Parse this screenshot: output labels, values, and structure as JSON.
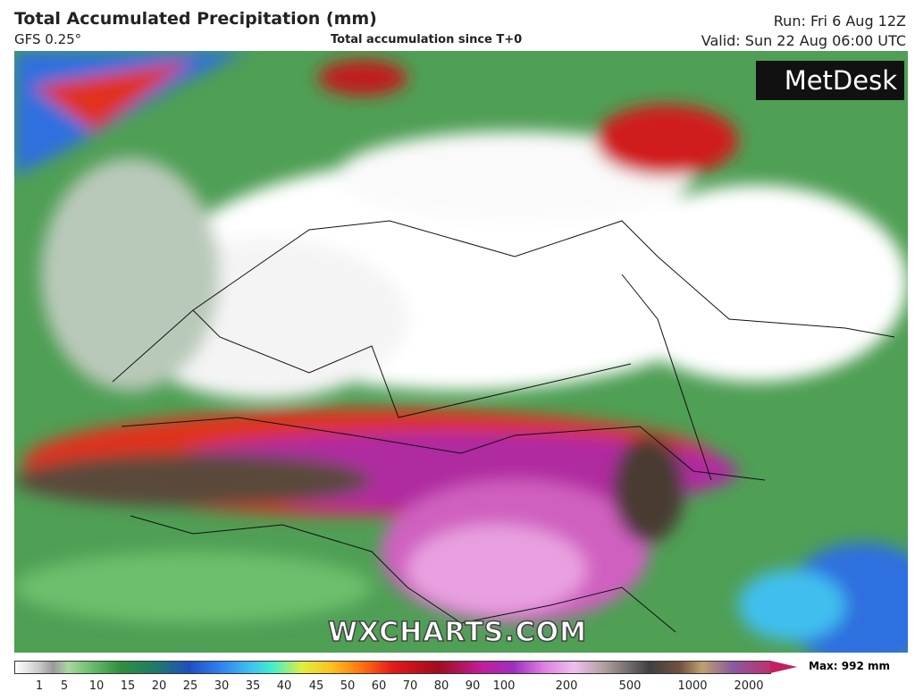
{
  "header": {
    "title": "Total Accumulated Precipitation (mm)",
    "model": "GFS 0.25°",
    "subtitle": "Total accumulation since T+0",
    "run": "Run: Fri 6 Aug 12Z",
    "valid": "Valid: Sun 22 Aug 06:00 UTC"
  },
  "map": {
    "logo": "MetDesk",
    "watermark": "WXCHARTS.COM"
  },
  "colorbar": {
    "max_label": "Max: 992 mm",
    "ticks": [
      1,
      5,
      10,
      15,
      20,
      25,
      30,
      35,
      40,
      45,
      50,
      60,
      70,
      80,
      90,
      100,
      200,
      500,
      1000,
      2000
    ]
  }
}
